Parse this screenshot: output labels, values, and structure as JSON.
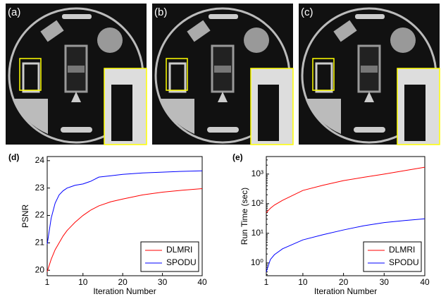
{
  "panels": [
    "(a)",
    "(b)",
    "(c)"
  ],
  "chart_data": [
    {
      "type": "line",
      "panel_label": "(d)",
      "xlabel": "Iteration Number",
      "ylabel": "PSNR",
      "x": [
        1,
        2,
        3,
        4,
        5,
        6,
        7,
        8,
        10,
        12,
        14,
        17,
        20,
        25,
        30,
        35,
        40
      ],
      "xlim": [
        1,
        40
      ],
      "xticks": [
        1,
        10,
        20,
        30,
        40
      ],
      "ylim": [
        19.8,
        24.15
      ],
      "yticks": [
        20,
        21,
        22,
        23,
        24
      ],
      "legend": "lower right",
      "series": [
        {
          "name": "DLMRI",
          "color": "#ff0000",
          "values": [
            19.95,
            20.4,
            20.75,
            21.0,
            21.25,
            21.45,
            21.6,
            21.75,
            22.0,
            22.2,
            22.35,
            22.5,
            22.6,
            22.75,
            22.85,
            22.92,
            22.98
          ]
        },
        {
          "name": "SPODU",
          "color": "#0000ff",
          "values": [
            20.95,
            21.9,
            22.45,
            22.75,
            22.9,
            23.0,
            23.05,
            23.1,
            23.15,
            23.25,
            23.4,
            23.45,
            23.5,
            23.55,
            23.58,
            23.61,
            23.63
          ]
        }
      ]
    },
    {
      "type": "line",
      "panel_label": "(e)",
      "xlabel": "Iteration Number",
      "ylabel": "Run Time (sec)",
      "x": [
        1,
        2,
        3,
        5,
        10,
        15,
        20,
        25,
        30,
        35,
        40
      ],
      "xlim": [
        1,
        40
      ],
      "xticks": [
        1,
        10,
        20,
        30,
        40
      ],
      "log_y": true,
      "ylim": [
        0.37,
        3900
      ],
      "yticks": [
        {
          "value": 1,
          "label": "10⁰"
        },
        {
          "value": 10,
          "label": "10¹"
        },
        {
          "value": 100,
          "label": "10²"
        },
        {
          "value": 1000,
          "label": "10³"
        }
      ],
      "legend": "lower right",
      "series": [
        {
          "name": "DLMRI",
          "color": "#ff0000",
          "values": [
            50,
            70,
            90,
            130,
            280,
            420,
            600,
            780,
            1000,
            1300,
            1700
          ]
        },
        {
          "name": "SPODU",
          "color": "#0000ff",
          "values": [
            0.5,
            1.3,
            1.9,
            3,
            6,
            9,
            13,
            18,
            23,
            27,
            31
          ]
        }
      ]
    }
  ]
}
